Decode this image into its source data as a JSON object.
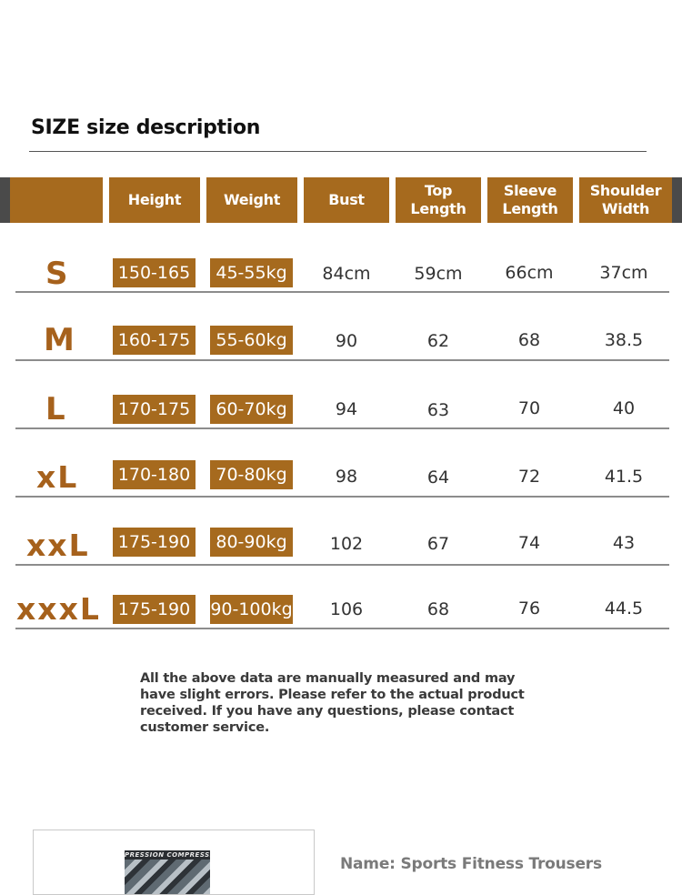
{
  "title": "SIZE size description",
  "headers": [
    "",
    "Height",
    "Weight",
    "Bust",
    "Top Length",
    "Sleeve\nLength",
    "Shoulder\nWidth"
  ],
  "rows": [
    {
      "size": "S",
      "height": "150-165",
      "weight": "45-55kg",
      "bust": "84cm",
      "top_length": "59cm",
      "sleeve": "66cm",
      "shoulder": "37cm"
    },
    {
      "size": "M",
      "height": "160-175",
      "weight": "55-60kg",
      "bust": "90",
      "top_length": "62",
      "sleeve": "68",
      "shoulder": "38.5"
    },
    {
      "size": "L",
      "height": "170-175",
      "weight": "60-70kg",
      "bust": "94",
      "top_length": "63",
      "sleeve": "70",
      "shoulder": "40"
    },
    {
      "size": "xL",
      "height": "170-180",
      "weight": "70-80kg",
      "bust": "98",
      "top_length": "64",
      "sleeve": "72",
      "shoulder": "41.5"
    },
    {
      "size": "xxL",
      "height": "175-190",
      "weight": "80-90kg",
      "bust": "102",
      "top_length": "67",
      "sleeve": "74",
      "shoulder": "43"
    },
    {
      "size": "xxxL",
      "height": "175-190",
      "weight": "90-100kg",
      "bust": "106",
      "top_length": "68",
      "sleeve": "76",
      "shoulder": "44.5"
    }
  ],
  "note": "All the above data are manually measured and may have slight errors. Please refer to the actual product received. If you have any questions, please contact customer service.",
  "product": {
    "image_text": "PRESSION COMPRESSI",
    "name": "Name: Sports Fitness Trousers"
  },
  "colors": {
    "accent": "#a66a1e",
    "size_text": "#a6611c",
    "band_dark": "#4a4a4a"
  }
}
